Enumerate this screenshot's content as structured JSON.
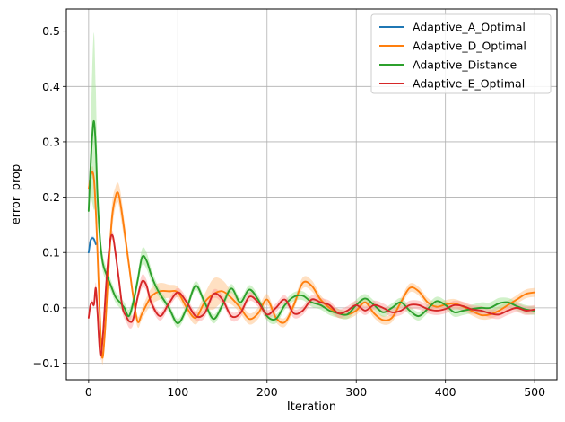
{
  "chart_data": {
    "type": "line",
    "title": "",
    "xlabel": "Iteration",
    "ylabel": "error_prop",
    "xlim": [
      -25,
      525
    ],
    "ylim": [
      -0.13,
      0.54
    ],
    "xticks": [
      0,
      100,
      200,
      300,
      400,
      500
    ],
    "yticks": [
      -0.1,
      0.0,
      0.1,
      0.2,
      0.3,
      0.4,
      0.5
    ],
    "ytick_labels": [
      "−0.1",
      "0.0",
      "0.1",
      "0.2",
      "0.3",
      "0.4",
      "0.5"
    ],
    "grid": true,
    "legend_position": "top-right",
    "series": [
      {
        "name": "Adaptive_A_Optimal",
        "color": "#1f77b4",
        "band_color": "#aec7e8",
        "x": [
          0,
          2,
          4,
          6,
          8
        ],
        "y": [
          0.1,
          0.121,
          0.126,
          0.124,
          0.115
        ],
        "band": [
          0.004,
          0.004,
          0.004,
          0.004,
          0.004
        ]
      },
      {
        "name": "Adaptive_D_Optimal",
        "color": "#ff7f0e",
        "band_color": "#ffbb78",
        "x": [
          0,
          3,
          6,
          9,
          12,
          15,
          18,
          22,
          26,
          30,
          33,
          36,
          40,
          45,
          50,
          55,
          60,
          70,
          80,
          90,
          100,
          110,
          120,
          130,
          140,
          150,
          160,
          170,
          180,
          190,
          200,
          210,
          220,
          230,
          240,
          250,
          260,
          270,
          280,
          290,
          300,
          310,
          320,
          330,
          340,
          350,
          360,
          370,
          380,
          390,
          400,
          410,
          420,
          430,
          440,
          450,
          460,
          470,
          480,
          490,
          500
        ],
        "y": [
          0.215,
          0.243,
          0.232,
          0.14,
          0.01,
          -0.088,
          -0.05,
          0.06,
          0.16,
          0.2,
          0.208,
          0.185,
          0.14,
          0.08,
          0.02,
          -0.025,
          -0.01,
          0.02,
          0.03,
          0.03,
          0.028,
          0.0,
          -0.018,
          0.01,
          0.025,
          0.03,
          0.018,
          0.0,
          -0.02,
          -0.01,
          0.015,
          -0.018,
          -0.026,
          0.005,
          0.045,
          0.04,
          0.015,
          0.0,
          -0.01,
          -0.012,
          -0.005,
          0.01,
          -0.01,
          -0.022,
          -0.018,
          0.01,
          0.036,
          0.03,
          0.01,
          0.002,
          0.006,
          0.008,
          0.002,
          -0.006,
          -0.013,
          -0.012,
          -0.005,
          0.005,
          0.015,
          0.025,
          0.028
        ],
        "band": [
          0.008,
          0.01,
          0.012,
          0.015,
          0.015,
          0.012,
          0.015,
          0.02,
          0.025,
          0.018,
          0.018,
          0.022,
          0.018,
          0.012,
          0.01,
          0.01,
          0.01,
          0.015,
          0.015,
          0.012,
          0.01,
          0.01,
          0.012,
          0.015,
          0.028,
          0.02,
          0.012,
          0.01,
          0.01,
          0.01,
          0.01,
          0.008,
          0.008,
          0.008,
          0.01,
          0.01,
          0.008,
          0.008,
          0.008,
          0.008,
          0.008,
          0.008,
          0.008,
          0.008,
          0.008,
          0.008,
          0.008,
          0.008,
          0.008,
          0.008,
          0.008,
          0.008,
          0.008,
          0.008,
          0.008,
          0.008,
          0.008,
          0.008,
          0.008,
          0.008,
          0.008
        ]
      },
      {
        "name": "Adaptive_Distance",
        "color": "#2ca02c",
        "band_color": "#98df8a",
        "x": [
          0,
          2,
          4,
          6,
          8,
          10,
          13,
          16,
          20,
          25,
          30,
          35,
          40,
          45,
          50,
          55,
          60,
          65,
          70,
          75,
          80,
          90,
          100,
          110,
          120,
          130,
          140,
          150,
          160,
          170,
          180,
          190,
          200,
          210,
          220,
          230,
          240,
          250,
          260,
          270,
          280,
          290,
          300,
          310,
          320,
          330,
          340,
          350,
          360,
          370,
          380,
          390,
          400,
          410,
          420,
          430,
          440,
          450,
          460,
          470,
          480,
          490,
          500
        ],
        "y": [
          0.175,
          0.25,
          0.31,
          0.337,
          0.29,
          0.2,
          0.12,
          0.08,
          0.06,
          0.04,
          0.02,
          0.01,
          0.0,
          -0.015,
          0.01,
          0.05,
          0.092,
          0.085,
          0.06,
          0.04,
          0.025,
          0.0,
          -0.028,
          0.0,
          0.04,
          0.01,
          -0.02,
          0.005,
          0.035,
          0.01,
          0.033,
          0.015,
          -0.015,
          -0.02,
          0.005,
          0.02,
          0.022,
          0.01,
          0.005,
          -0.005,
          -0.01,
          -0.012,
          0.005,
          0.017,
          0.005,
          -0.008,
          0.0,
          0.01,
          -0.005,
          -0.015,
          -0.002,
          0.012,
          0.005,
          -0.008,
          -0.005,
          -0.002,
          0.0,
          0.0,
          0.008,
          0.01,
          0.003,
          -0.003,
          -0.005
        ],
        "band": [
          0.01,
          0.05,
          0.12,
          0.16,
          0.11,
          0.05,
          0.02,
          0.015,
          0.012,
          0.01,
          0.01,
          0.01,
          0.01,
          0.012,
          0.012,
          0.012,
          0.015,
          0.015,
          0.012,
          0.01,
          0.008,
          0.008,
          0.008,
          0.008,
          0.008,
          0.008,
          0.008,
          0.008,
          0.008,
          0.008,
          0.008,
          0.008,
          0.008,
          0.008,
          0.008,
          0.008,
          0.008,
          0.008,
          0.008,
          0.008,
          0.008,
          0.008,
          0.01,
          0.008,
          0.008,
          0.008,
          0.008,
          0.008,
          0.008,
          0.008,
          0.008,
          0.008,
          0.008,
          0.008,
          0.008,
          0.008,
          0.01,
          0.01,
          0.01,
          0.008,
          0.008,
          0.008,
          0.008
        ]
      },
      {
        "name": "Adaptive_E_Optimal",
        "color": "#d62728",
        "band_color": "#ff9896",
        "x": [
          0,
          2,
          4,
          6,
          8,
          10,
          13,
          16,
          20,
          24,
          27,
          30,
          34,
          38,
          42,
          46,
          50,
          55,
          60,
          65,
          70,
          80,
          90,
          100,
          110,
          120,
          130,
          140,
          150,
          160,
          170,
          180,
          190,
          200,
          210,
          220,
          230,
          240,
          250,
          260,
          270,
          280,
          290,
          300,
          310,
          320,
          330,
          340,
          350,
          360,
          370,
          380,
          390,
          400,
          410,
          420,
          430,
          440,
          450,
          460,
          470,
          480,
          490,
          500
        ],
        "y": [
          -0.018,
          0.005,
          0.01,
          0.006,
          0.036,
          -0.01,
          -0.085,
          -0.05,
          0.05,
          0.12,
          0.13,
          0.1,
          0.05,
          0.0,
          -0.015,
          -0.025,
          -0.02,
          0.02,
          0.048,
          0.04,
          0.01,
          -0.015,
          0.008,
          0.028,
          0.01,
          -0.015,
          -0.01,
          0.025,
          0.015,
          -0.015,
          -0.01,
          0.02,
          0.01,
          -0.012,
          0.0,
          0.015,
          -0.01,
          -0.005,
          0.015,
          0.01,
          0.005,
          -0.01,
          -0.005,
          0.005,
          -0.005,
          0.005,
          0.0,
          -0.008,
          -0.005,
          0.005,
          0.005,
          -0.002,
          -0.005,
          -0.002,
          0.005,
          0.003,
          -0.003,
          -0.005,
          -0.01,
          -0.012,
          -0.005,
          0.0,
          -0.005,
          -0.003
        ],
        "band": [
          0.005,
          0.005,
          0.005,
          0.005,
          0.01,
          0.01,
          0.008,
          0.01,
          0.012,
          0.01,
          0.008,
          0.01,
          0.012,
          0.01,
          0.01,
          0.012,
          0.01,
          0.01,
          0.012,
          0.01,
          0.008,
          0.008,
          0.008,
          0.008,
          0.008,
          0.008,
          0.008,
          0.008,
          0.008,
          0.008,
          0.008,
          0.008,
          0.008,
          0.008,
          0.008,
          0.008,
          0.008,
          0.008,
          0.008,
          0.008,
          0.008,
          0.008,
          0.008,
          0.008,
          0.008,
          0.008,
          0.008,
          0.008,
          0.008,
          0.008,
          0.008,
          0.008,
          0.008,
          0.008,
          0.008,
          0.008,
          0.008,
          0.008,
          0.008,
          0.008,
          0.008,
          0.008,
          0.008,
          0.008
        ]
      }
    ]
  }
}
